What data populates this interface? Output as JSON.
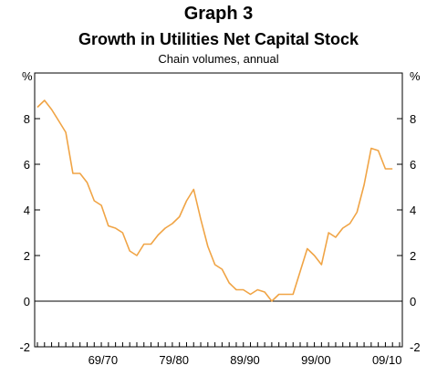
{
  "chart_data": {
    "type": "line",
    "title": "Graph 3",
    "subtitle": "Growth in Utilities Net Capital Stock",
    "note": "Chain volumes, annual",
    "unit_left": "%",
    "unit_right": "%",
    "ylim": [
      -2,
      10
    ],
    "y_ticks": [
      -2,
      0,
      2,
      4,
      6,
      8
    ],
    "x_tick_labels": [
      "69/70",
      "79/80",
      "89/90",
      "99/00",
      "09/10"
    ],
    "x_tick_positions": [
      1970,
      1980,
      1990,
      2000,
      2010
    ],
    "xlim": [
      1960,
      2011
    ],
    "grid": false,
    "line_color": "#f0a445",
    "series": [
      {
        "x": [
          1960,
          1961,
          1962,
          1963,
          1964,
          1965,
          1966,
          1967,
          1968,
          1969,
          1970,
          1971,
          1972,
          1973,
          1974,
          1975,
          1976,
          1977,
          1978,
          1979,
          1980,
          1981,
          1982,
          1983,
          1984,
          1985,
          1986,
          1987,
          1988,
          1989,
          1990,
          1991,
          1992,
          1993,
          1994,
          1995,
          1996,
          1997,
          1998,
          1999,
          2000,
          2001,
          2002,
          2003,
          2004,
          2005,
          2006,
          2007,
          2008,
          2009,
          2010
        ],
        "values": [
          8.5,
          8.8,
          8.4,
          7.9,
          7.4,
          5.6,
          5.6,
          5.2,
          4.4,
          4.2,
          3.3,
          3.2,
          3.0,
          2.2,
          2.0,
          2.5,
          2.5,
          2.9,
          3.2,
          3.4,
          3.7,
          4.4,
          4.9,
          3.6,
          2.4,
          1.6,
          1.4,
          0.8,
          0.5,
          0.5,
          0.3,
          0.5,
          0.4,
          0.0,
          0.3,
          0.3,
          0.3,
          1.3,
          2.3,
          2.0,
          1.6,
          3.0,
          2.8,
          3.2,
          3.4,
          3.9,
          5.1,
          6.7,
          6.6,
          5.8,
          5.8
        ]
      }
    ]
  }
}
